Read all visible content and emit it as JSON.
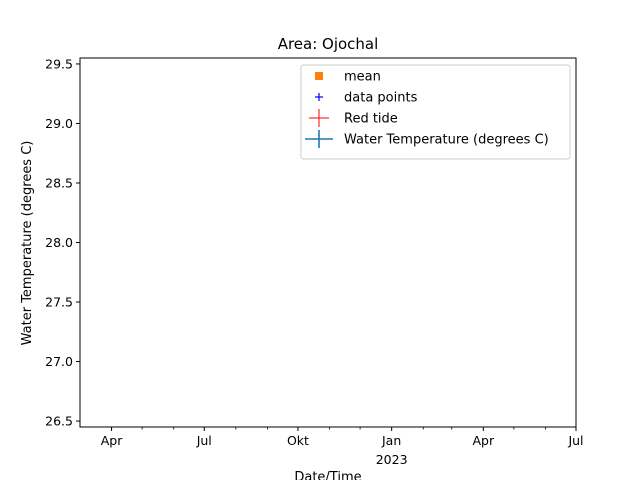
{
  "chart_data": {
    "type": "scatter",
    "title": "Area: Ojochal",
    "xlabel": "Date/Time",
    "ylabel": "Water Temperature (degrees C)",
    "xlim": [
      "2022-03-01",
      "2023-07-01"
    ],
    "ylim": [
      26.45,
      29.55
    ],
    "x_ticks": [
      {
        "date": "2022-04-01",
        "label": "Apr",
        "sublabel": ""
      },
      {
        "date": "2022-07-01",
        "label": "Jul",
        "sublabel": ""
      },
      {
        "date": "2022-10-01",
        "label": "Okt",
        "sublabel": ""
      },
      {
        "date": "2023-01-01",
        "label": "Jan",
        "sublabel": "2023"
      },
      {
        "date": "2023-04-01",
        "label": "Apr",
        "sublabel": ""
      },
      {
        "date": "2023-07-01",
        "label": "Jul",
        "sublabel": ""
      }
    ],
    "x_minor_ticks": [
      "2022-05-01",
      "2022-06-01",
      "2022-08-01",
      "2022-09-01",
      "2022-11-01",
      "2022-12-01",
      "2023-02-01",
      "2023-03-01",
      "2023-05-01",
      "2023-06-01"
    ],
    "y_ticks": [
      26.5,
      27.0,
      27.5,
      28.0,
      28.5,
      29.0,
      29.5
    ],
    "y_tick_labels": [
      "26.5",
      "27.0",
      "27.5",
      "28.0",
      "28.5",
      "29.0",
      "29.5"
    ],
    "legend": {
      "placement": "top-right",
      "entries": [
        {
          "label": "mean",
          "marker": "square",
          "color": "#ff7f0e"
        },
        {
          "label": "data points",
          "marker": "plus",
          "color": "#0000ff"
        },
        {
          "label": "Red tide",
          "marker": "errorbar",
          "color": "#ff0000"
        },
        {
          "label": "Water Temperature (degrees C)",
          "marker": "errorbar",
          "color": "#1f77b4"
        }
      ]
    },
    "series": []
  }
}
